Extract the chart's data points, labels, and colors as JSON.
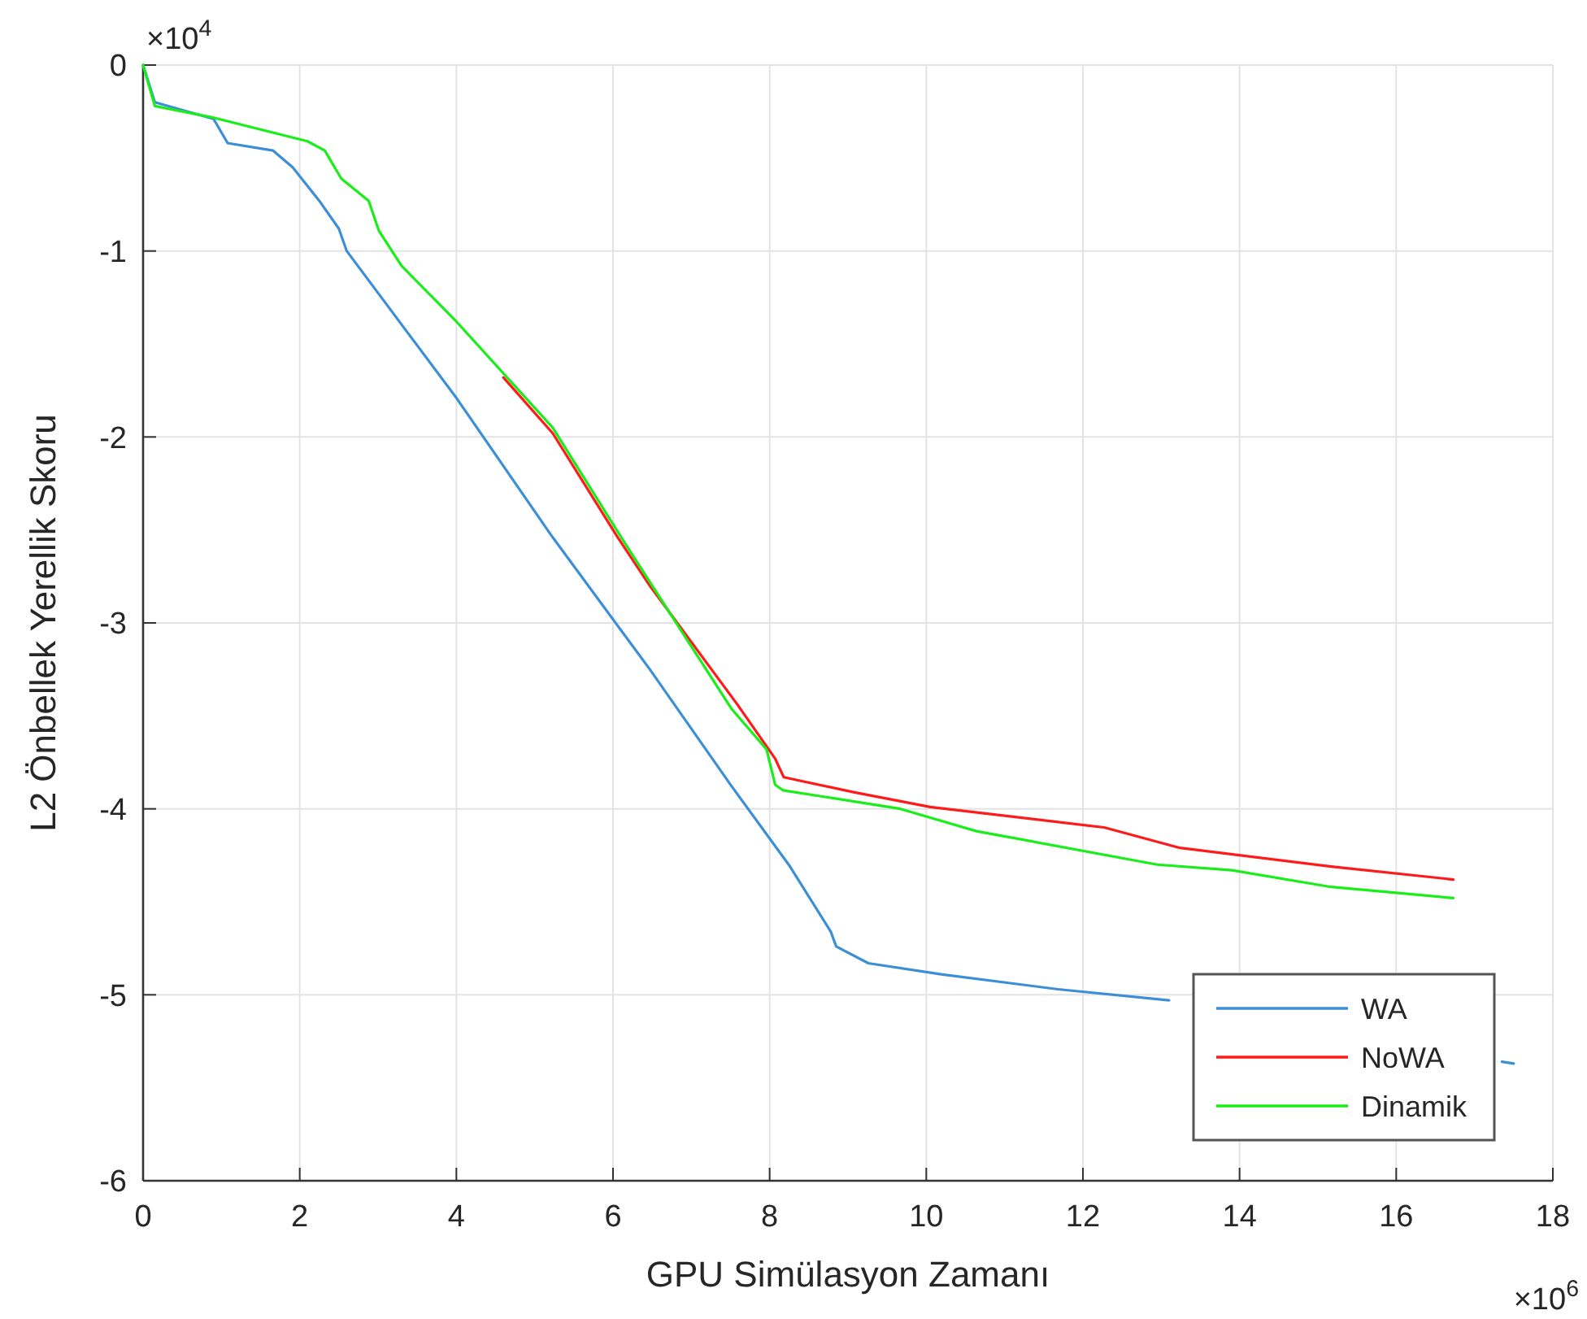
{
  "chart_data": {
    "type": "line",
    "xlabel": "GPU Simülasyon Zamanı",
    "ylabel": "L2 Önbellek Yerellik Skoru",
    "annotations": [
      "×10$^{4}$",
      "×10$^{6}$"
    ],
    "xlim": [
      0,
      18
    ],
    "xticks": [
      0,
      2,
      4,
      6,
      8,
      10,
      12,
      14,
      16,
      18
    ],
    "ylim": [
      -6,
      0
    ],
    "yticks": [
      -6,
      -5,
      -4,
      -3,
      -2,
      -1,
      0
    ],
    "grid": true,
    "legend": "bottom right",
    "line_style": "solid",
    "marker": "none",
    "series": [
      {
        "name": "WA",
        "color": "#3c8fd6",
        "x": [
          0,
          0.15,
          0.9,
          1.08,
          1.66,
          1.91,
          2.25,
          2.5,
          2.6,
          4,
          5.23,
          6.47,
          7.5,
          8.26,
          8.78,
          8.85,
          9.26,
          10.19,
          11.68,
          13.1,
          13.5,
          17.35,
          17.5
        ],
        "values": [
          0,
          -0.2,
          -0.29,
          -0.42,
          -0.46,
          -0.55,
          -0.73,
          -0.88,
          -1.0,
          -1.79,
          -2.54,
          -3.25,
          -3.87,
          -4.31,
          -4.66,
          -4.74,
          -4.83,
          -4.89,
          -4.97,
          -5.03,
          null,
          -5.36,
          -5.37
        ]
      },
      {
        "name": "NoWA",
        "color": "#ff1a1a",
        "x": [
          4.6,
          5.23,
          6.06,
          6.47,
          7.59,
          8.07,
          8.18,
          9.07,
          10.05,
          12.27,
          13.24,
          15.17,
          16.73
        ],
        "values": [
          -1.68,
          -1.98,
          -2.54,
          -2.8,
          -3.44,
          -3.73,
          -3.83,
          -3.91,
          -3.99,
          -4.1,
          -4.21,
          -4.31,
          -4.38
        ]
      },
      {
        "name": "Dinamik",
        "color": "#1aee1a",
        "x": [
          0,
          0.15,
          0.87,
          2.1,
          2.32,
          2.53,
          2.88,
          3.01,
          3.3,
          3.98,
          5.23,
          6.06,
          6.47,
          7.51,
          7.96,
          8.07,
          8.17,
          9.67,
          10.64,
          12.95,
          13.9,
          15.17,
          16.73
        ],
        "values": [
          0,
          -0.22,
          -0.28,
          -0.41,
          -0.46,
          -0.61,
          -0.73,
          -0.89,
          -1.08,
          -1.37,
          -1.95,
          -2.51,
          -2.78,
          -3.46,
          -3.68,
          -3.87,
          -3.9,
          -4.0,
          -4.12,
          -4.3,
          -4.33,
          -4.42,
          -4.48
        ]
      }
    ]
  }
}
